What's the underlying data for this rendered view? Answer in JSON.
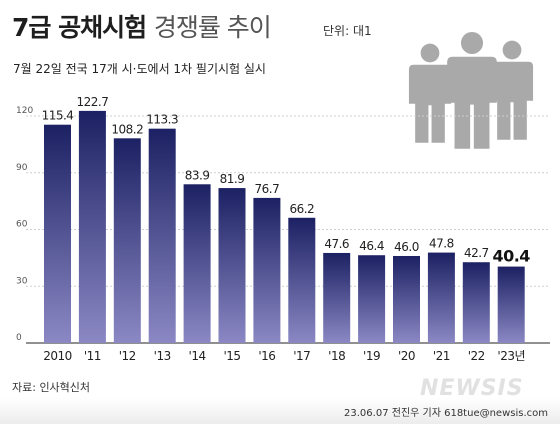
{
  "header": {
    "title_bold": "7급 공채시험",
    "title_light": "경쟁률 추이",
    "unit": "단위: 대1",
    "subtitle": "7월 22일 전국 17개 시·도에서 1차 필기시험 실시"
  },
  "footer": {
    "source": "자료: 인사혁신처",
    "credit": "23.06.07 전진우 기자 618tue@newsis.com",
    "watermark": "NEWSIS"
  },
  "icon": "people-group-icon",
  "colors": {
    "bar_top": "#1c2163",
    "bar_bottom": "#8b88c4",
    "grid": "#cfcfcf",
    "icon": "#a9a9a9",
    "highlight_text": "#111111"
  },
  "chart_data": {
    "type": "bar",
    "title": "7급 공채시험 경쟁률 추이",
    "xlabel": "",
    "ylabel": "",
    "ylim": [
      0,
      120
    ],
    "yticks": [
      0,
      30,
      60,
      90,
      120
    ],
    "grid": true,
    "categories": [
      "2010",
      "'11",
      "'12",
      "'13",
      "'14",
      "'15",
      "'16",
      "'17",
      "'18",
      "'19",
      "'20",
      "'21",
      "'22",
      "'23년"
    ],
    "values": [
      115.4,
      122.7,
      108.2,
      113.3,
      83.9,
      81.9,
      76.7,
      66.2,
      47.6,
      46.4,
      46.0,
      47.8,
      42.7,
      40.4
    ],
    "value_labels": [
      "115.4",
      "122.7",
      "108.2",
      "113.3",
      "83.9",
      "81.9",
      "76.7",
      "66.2",
      "47.6",
      "46.4",
      "46.0",
      "47.8",
      "42.7",
      "40.4"
    ],
    "highlight_index": 13
  }
}
